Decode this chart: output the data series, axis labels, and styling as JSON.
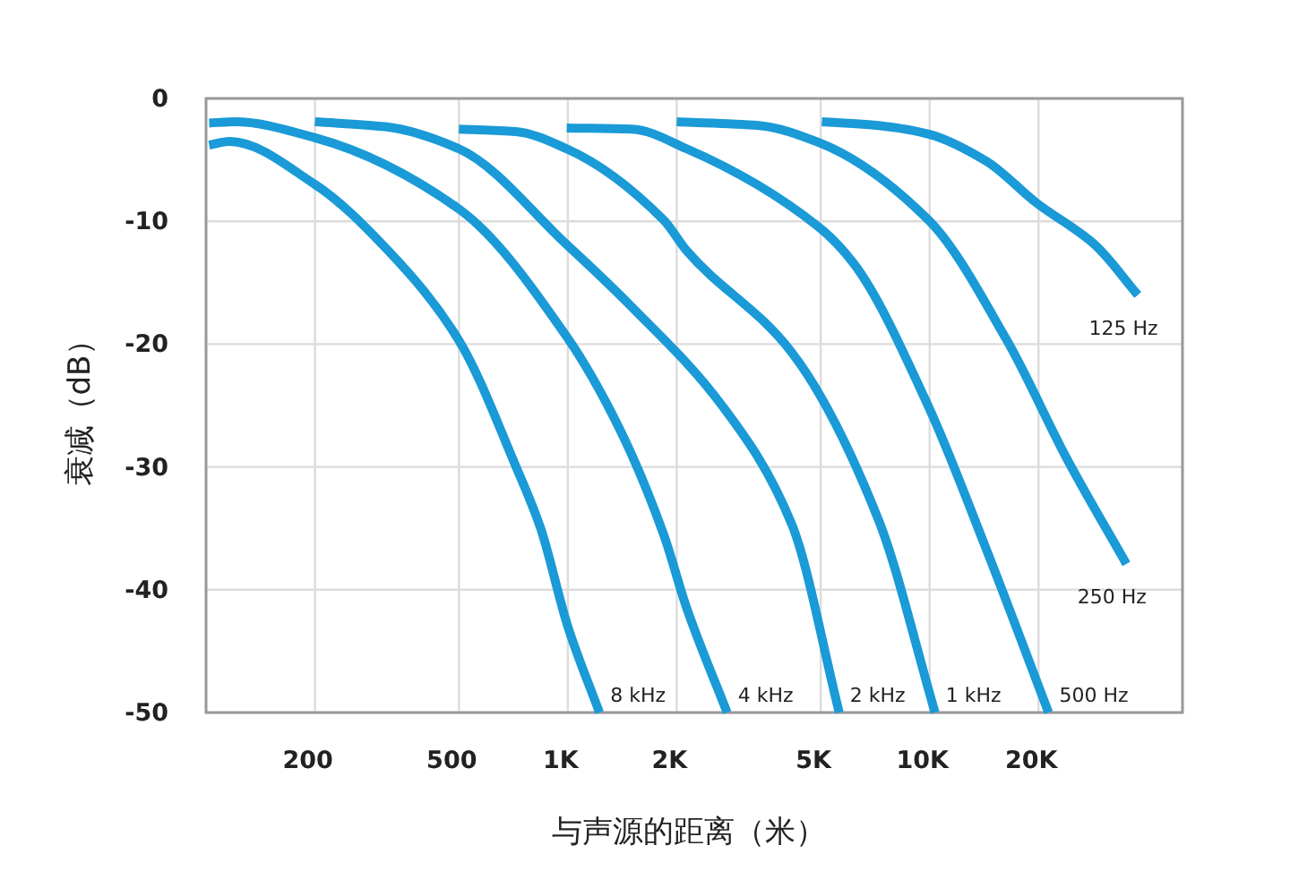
{
  "chart_data": {
    "type": "line",
    "xlabel": "与声源的距离（米）",
    "ylabel": "衰减（dB）",
    "xlim": [
      100,
      50000
    ],
    "xticks": [
      {
        "value": 200,
        "label": "200"
      },
      {
        "value": 500,
        "label": "500"
      },
      {
        "value": 1000,
        "label": "1K"
      },
      {
        "value": 2000,
        "label": "2K"
      },
      {
        "value": 5000,
        "label": "5K"
      },
      {
        "value": 10000,
        "label": "10K"
      },
      {
        "value": 20000,
        "label": "20K"
      }
    ],
    "ylim": [
      -50,
      0
    ],
    "yticks": [
      0,
      -10,
      -20,
      -30,
      -40,
      -50
    ],
    "grid": true,
    "log": "x",
    "line_style": "solid",
    "series": [
      {
        "name": "8 kHz",
        "color": "#1a9ad7",
        "x": [
          102,
          116,
          200,
          319,
          500,
          717,
          841,
          1000,
          1223
        ],
        "values": [
          -3.8,
          -3.5,
          -7.0,
          -12.4,
          -19.7,
          -29.9,
          -35.0,
          -43.0,
          -50
        ]
      },
      {
        "name": "4 kHz",
        "color": "#1a9ad7",
        "x": [
          102,
          120,
          200,
          500,
          993,
          1395,
          1840,
          2131,
          2756
        ],
        "values": [
          -2.0,
          -1.9,
          -3.2,
          -9.0,
          -19.4,
          -27.0,
          -35.5,
          -41.5,
          -50
        ]
      },
      {
        "name": "2 kHz",
        "color": "#1a9ad7",
        "x": [
          200,
          313,
          500,
          993,
          1505,
          2683,
          4163,
          5625
        ],
        "values": [
          -1.9,
          -2.3,
          -4.1,
          -11.9,
          -17.0,
          -25.1,
          -34.7,
          -50
        ]
      },
      {
        "name": "1 kHz",
        "color": "#1a9ad7",
        "x": [
          500,
          717,
          993,
          1840,
          2131,
          4163,
          7220,
          10353
        ],
        "values": [
          -2.5,
          -2.7,
          -4.1,
          -9.9,
          -12.4,
          -20.7,
          -34.3,
          -50
        ]
      },
      {
        "name": "500 Hz",
        "color": "#1a9ad7",
        "x": [
          993,
          1505,
          2131,
          4954,
          6156,
          9931,
          14340,
          21320
        ],
        "values": [
          -2.4,
          -2.5,
          -4.1,
          -10.5,
          -13.4,
          -25.1,
          -36.7,
          -50
        ]
      },
      {
        "name": "250 Hz",
        "color": "#1a9ad7",
        "x": [
          2000,
          3372,
          4954,
          9931,
          16360,
          24020,
          34980
        ],
        "values": [
          -1.9,
          -2.2,
          -3.6,
          -9.9,
          -19.7,
          -29.4,
          -37.9
        ]
      },
      {
        "name": "125 Hz",
        "color": "#1a9ad7",
        "x": [
          5035,
          7220,
          9931,
          14340,
          19730,
          28600,
          37620
        ],
        "values": [
          -1.9,
          -2.2,
          -2.9,
          -5.1,
          -8.5,
          -11.9,
          -16.0
        ]
      }
    ]
  }
}
